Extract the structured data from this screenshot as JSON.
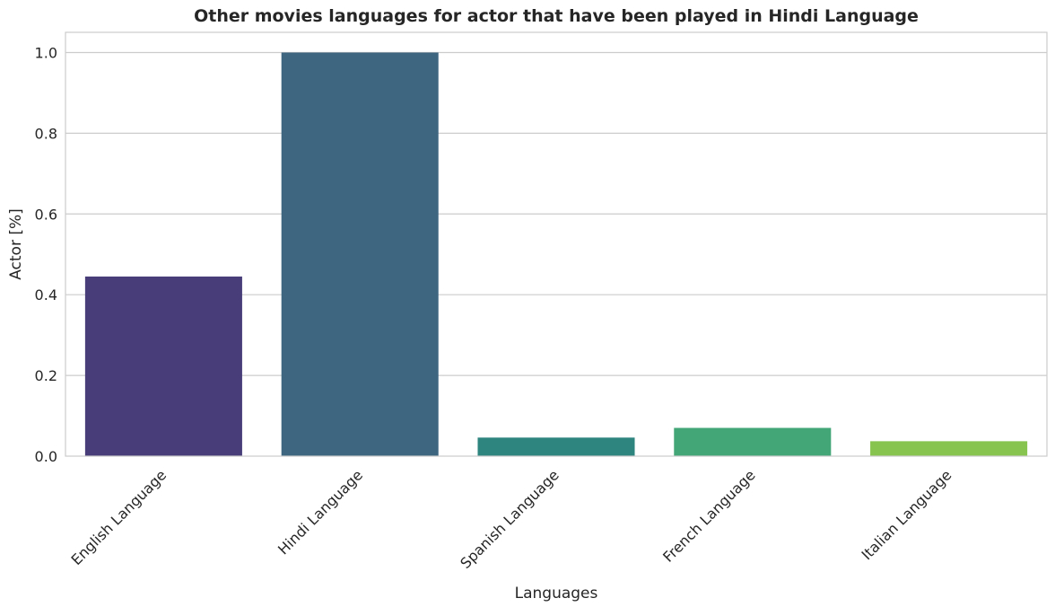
{
  "chart_data": {
    "type": "bar",
    "title": "Other movies languages for actor that have been played in Hindi Language",
    "xlabel": "Languages",
    "ylabel": "Actor [%]",
    "categories": [
      "English Language",
      "Hindi Language",
      "Spanish Language",
      "French Language",
      "Italian Language"
    ],
    "values": [
      0.445,
      1.0,
      0.046,
      0.07,
      0.037
    ],
    "colors": [
      "#483d79",
      "#3e6680",
      "#2e847f",
      "#43a677",
      "#86c44f"
    ],
    "ylim": [
      0,
      1.05
    ],
    "yticks": [
      "0.0",
      "0.2",
      "0.4",
      "0.6",
      "0.8",
      "1.0"
    ],
    "grid": "horizontal",
    "xtick_rotation": "45 degrees"
  }
}
